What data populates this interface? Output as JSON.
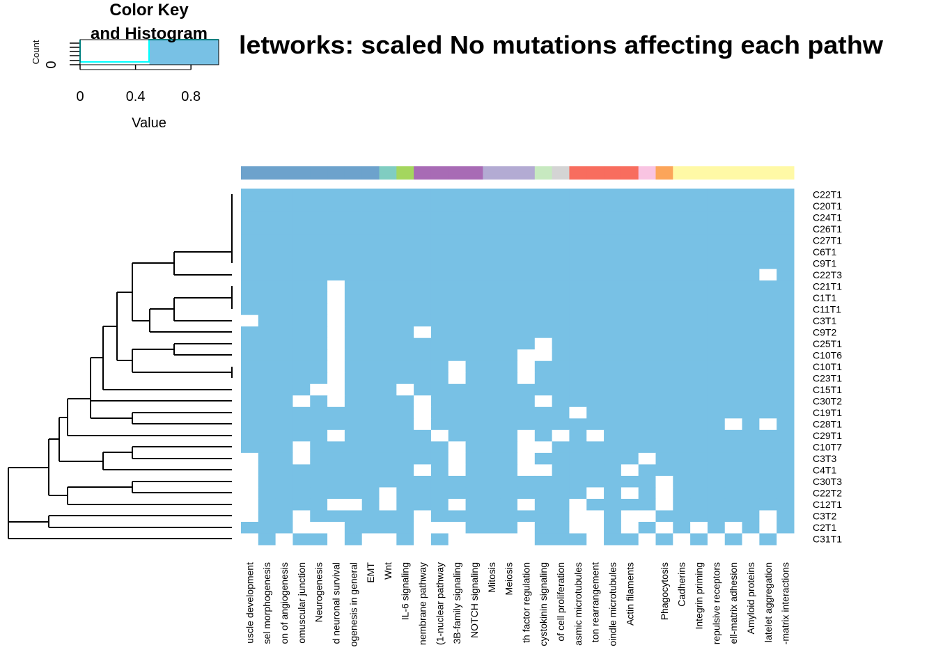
{
  "chart_data": {
    "type": "heatmap",
    "title": "letworks: scaled No mutations affecting each pathw",
    "rows": [
      "C22T1",
      "C20T1",
      "C24T1",
      "C26T1",
      "C27T1",
      "C6T1",
      "C9T1",
      "C22T3",
      "C21T1",
      "C1T1",
      "C11T1",
      "C3T1",
      "C9T2",
      "C25T1",
      "C10T6",
      "C10T1",
      "C23T1",
      "C15T1",
      "C30T2",
      "C19T1",
      "C28T1",
      "C29T1",
      "C10T7",
      "C3T3",
      "C4T1",
      "C30T3",
      "C22T2",
      "C12T1",
      "C3T2",
      "C2T1",
      "C31T1"
    ],
    "columns": [
      "uscle development",
      "sel morphogenesis",
      "on of angiogenesis",
      "omuscular junction",
      "Neurogenesis",
      "d neuronal survival",
      "ogenesis in general",
      "EMT",
      "Wnt",
      "IL-6 signaling",
      "nembrane pathway",
      "(1-nuclear pathway",
      "3B-family signaling",
      "NOTCH signaling",
      "Mitosis",
      "Meiosis",
      "th factor regulation",
      "cystokinin signaling",
      "of cell proliferation",
      "asmic microtubules",
      "ton rearrangement",
      "oindle microtubules",
      "Actin filaments",
      null,
      "Phagocytosis",
      "Cadherins",
      "Integrin priming",
      "repulsive receptors",
      "ell-matrix adhesion",
      "Amyloid proteins",
      "latelet aggregation",
      "-matrix interactions"
    ],
    "column_colors": [
      "#6da2cc",
      "#6da2cc",
      "#6da2cc",
      "#6da2cc",
      "#6da2cc",
      "#6da2cc",
      "#6da2cc",
      "#6da2cc",
      "#80cdc1",
      "#a4d65e",
      "#a86bb5",
      "#a86bb5",
      "#a86bb5",
      "#a86bb5",
      "#b3abd3",
      "#b3abd3",
      "#b3abd3",
      "#c7e9c0",
      "#d4d4d4",
      "#f86d5e",
      "#f86d5e",
      "#f86d5e",
      "#f86d5e",
      "#f9c4e2",
      "#fca55a",
      "#fff9a6",
      "#fff9a6",
      "#fff9a6",
      "#fff9a6",
      "#fff9a6",
      "#fff9a6",
      "#fff9a6"
    ],
    "low_color": "#ffffff",
    "high_color": "#78c1e5",
    "color_breaks": [
      0,
      0.5,
      1
    ],
    "values": [
      [
        1,
        1,
        1,
        1,
        1,
        1,
        1,
        1,
        1,
        1,
        1,
        1,
        1,
        1,
        1,
        1,
        1,
        1,
        1,
        1,
        1,
        1,
        1,
        1,
        1,
        1,
        1,
        1,
        1,
        1,
        1,
        1
      ],
      [
        1,
        1,
        1,
        1,
        1,
        1,
        1,
        1,
        1,
        1,
        1,
        1,
        1,
        1,
        1,
        1,
        1,
        1,
        1,
        1,
        1,
        1,
        1,
        1,
        1,
        1,
        1,
        1,
        1,
        1,
        1,
        1
      ],
      [
        1,
        1,
        1,
        1,
        1,
        1,
        1,
        1,
        1,
        1,
        1,
        1,
        1,
        1,
        1,
        1,
        1,
        1,
        1,
        1,
        1,
        1,
        1,
        1,
        1,
        1,
        1,
        1,
        1,
        1,
        1,
        1
      ],
      [
        1,
        1,
        1,
        1,
        1,
        1,
        1,
        1,
        1,
        1,
        1,
        1,
        1,
        1,
        1,
        1,
        1,
        1,
        1,
        1,
        1,
        1,
        1,
        1,
        1,
        1,
        1,
        1,
        1,
        1,
        1,
        1
      ],
      [
        1,
        1,
        1,
        1,
        1,
        1,
        1,
        1,
        1,
        1,
        1,
        1,
        1,
        1,
        1,
        1,
        1,
        1,
        1,
        1,
        1,
        1,
        1,
        1,
        1,
        1,
        1,
        1,
        1,
        1,
        1,
        1
      ],
      [
        1,
        1,
        1,
        1,
        1,
        1,
        1,
        1,
        1,
        1,
        1,
        1,
        1,
        1,
        1,
        1,
        1,
        1,
        1,
        1,
        1,
        1,
        1,
        1,
        1,
        1,
        1,
        1,
        1,
        1,
        1,
        1
      ],
      [
        1,
        1,
        1,
        1,
        1,
        1,
        1,
        1,
        1,
        1,
        1,
        1,
        1,
        1,
        1,
        1,
        1,
        1,
        1,
        1,
        1,
        1,
        1,
        1,
        1,
        1,
        1,
        1,
        1,
        1,
        1,
        1
      ],
      [
        1,
        1,
        1,
        1,
        1,
        1,
        1,
        1,
        1,
        1,
        1,
        1,
        1,
        1,
        1,
        1,
        1,
        1,
        1,
        1,
        1,
        1,
        1,
        1,
        1,
        1,
        1,
        1,
        1,
        1,
        0,
        1
      ],
      [
        1,
        1,
        1,
        1,
        1,
        0,
        1,
        1,
        1,
        1,
        1,
        1,
        1,
        1,
        1,
        1,
        1,
        1,
        1,
        1,
        1,
        1,
        1,
        1,
        1,
        1,
        1,
        1,
        1,
        1,
        1,
        1
      ],
      [
        1,
        1,
        1,
        1,
        1,
        0,
        1,
        1,
        1,
        1,
        1,
        1,
        1,
        1,
        1,
        1,
        1,
        1,
        1,
        1,
        1,
        1,
        1,
        1,
        1,
        1,
        1,
        1,
        1,
        1,
        1,
        1
      ],
      [
        1,
        1,
        1,
        1,
        1,
        0,
        1,
        1,
        1,
        1,
        1,
        1,
        1,
        1,
        1,
        1,
        1,
        1,
        1,
        1,
        1,
        1,
        1,
        1,
        1,
        1,
        1,
        1,
        1,
        1,
        1,
        1
      ],
      [
        0,
        1,
        1,
        1,
        1,
        0,
        1,
        1,
        1,
        1,
        1,
        1,
        1,
        1,
        1,
        1,
        1,
        1,
        1,
        1,
        1,
        1,
        1,
        1,
        1,
        1,
        1,
        1,
        1,
        1,
        1,
        1
      ],
      [
        1,
        1,
        1,
        1,
        1,
        0,
        1,
        1,
        1,
        1,
        0,
        1,
        1,
        1,
        1,
        1,
        1,
        1,
        1,
        1,
        1,
        1,
        1,
        1,
        1,
        1,
        1,
        1,
        1,
        1,
        1,
        1
      ],
      [
        1,
        1,
        1,
        1,
        1,
        0,
        1,
        1,
        1,
        1,
        1,
        1,
        1,
        1,
        1,
        1,
        1,
        0,
        1,
        1,
        1,
        1,
        1,
        1,
        1,
        1,
        1,
        1,
        1,
        1,
        1,
        1
      ],
      [
        1,
        1,
        1,
        1,
        1,
        0,
        1,
        1,
        1,
        1,
        1,
        1,
        1,
        1,
        1,
        1,
        0,
        0,
        1,
        1,
        1,
        1,
        1,
        1,
        1,
        1,
        1,
        1,
        1,
        1,
        1,
        1
      ],
      [
        1,
        1,
        1,
        1,
        1,
        0,
        1,
        1,
        1,
        1,
        1,
        1,
        0,
        1,
        1,
        1,
        0,
        1,
        1,
        1,
        1,
        1,
        1,
        1,
        1,
        1,
        1,
        1,
        1,
        1,
        1,
        1
      ],
      [
        1,
        1,
        1,
        1,
        1,
        0,
        1,
        1,
        1,
        1,
        1,
        1,
        0,
        1,
        1,
        1,
        0,
        1,
        1,
        1,
        1,
        1,
        1,
        1,
        1,
        1,
        1,
        1,
        1,
        1,
        1,
        1
      ],
      [
        1,
        1,
        1,
        1,
        0,
        0,
        1,
        1,
        1,
        0,
        1,
        1,
        1,
        1,
        1,
        1,
        1,
        1,
        1,
        1,
        1,
        1,
        1,
        1,
        1,
        1,
        1,
        1,
        1,
        1,
        1,
        1
      ],
      [
        1,
        1,
        1,
        0,
        1,
        0,
        1,
        1,
        1,
        1,
        0,
        1,
        1,
        1,
        1,
        1,
        1,
        0,
        1,
        1,
        1,
        1,
        1,
        1,
        1,
        1,
        1,
        1,
        1,
        1,
        1,
        1
      ],
      [
        1,
        1,
        1,
        1,
        1,
        1,
        1,
        1,
        1,
        1,
        0,
        1,
        1,
        1,
        1,
        1,
        1,
        1,
        1,
        0,
        1,
        1,
        1,
        1,
        1,
        1,
        1,
        1,
        1,
        1,
        1,
        1
      ],
      [
        1,
        1,
        1,
        1,
        1,
        1,
        1,
        1,
        1,
        1,
        0,
        1,
        1,
        1,
        1,
        1,
        1,
        1,
        1,
        1,
        1,
        1,
        1,
        1,
        1,
        1,
        1,
        1,
        0,
        1,
        0,
        1
      ],
      [
        1,
        1,
        1,
        1,
        1,
        0,
        1,
        1,
        1,
        1,
        1,
        0,
        1,
        1,
        1,
        1,
        0,
        1,
        0,
        1,
        0,
        1,
        1,
        1,
        1,
        1,
        1,
        1,
        1,
        1,
        1,
        1
      ],
      [
        1,
        1,
        1,
        0,
        1,
        1,
        1,
        1,
        1,
        1,
        1,
        1,
        0,
        1,
        1,
        1,
        0,
        0,
        1,
        1,
        1,
        1,
        1,
        1,
        1,
        1,
        1,
        1,
        1,
        1,
        1,
        1
      ],
      [
        0,
        1,
        1,
        0,
        1,
        1,
        1,
        1,
        1,
        1,
        1,
        1,
        0,
        1,
        1,
        1,
        0,
        1,
        1,
        1,
        1,
        1,
        1,
        0,
        1,
        1,
        1,
        1,
        1,
        1,
        1,
        1
      ],
      [
        0,
        1,
        1,
        1,
        1,
        1,
        1,
        1,
        1,
        1,
        0,
        1,
        0,
        1,
        1,
        1,
        0,
        0,
        1,
        1,
        1,
        1,
        0,
        1,
        1,
        1,
        1,
        1,
        1,
        1,
        1,
        1
      ],
      [
        0,
        1,
        1,
        1,
        1,
        1,
        1,
        1,
        1,
        1,
        1,
        1,
        1,
        1,
        1,
        1,
        1,
        1,
        1,
        1,
        1,
        1,
        1,
        1,
        0,
        1,
        1,
        1,
        1,
        1,
        1,
        1
      ],
      [
        0,
        1,
        1,
        1,
        1,
        1,
        1,
        1,
        0,
        1,
        1,
        1,
        1,
        1,
        1,
        1,
        1,
        1,
        1,
        1,
        0,
        1,
        0,
        1,
        0,
        1,
        1,
        1,
        1,
        1,
        1,
        1
      ],
      [
        0,
        1,
        1,
        1,
        1,
        0,
        0,
        1,
        0,
        1,
        1,
        1,
        0,
        1,
        1,
        1,
        0,
        1,
        1,
        0,
        1,
        1,
        1,
        1,
        0,
        1,
        1,
        1,
        1,
        1,
        1,
        1
      ],
      [
        0,
        1,
        1,
        0,
        1,
        1,
        1,
        1,
        1,
        1,
        0,
        1,
        1,
        1,
        1,
        1,
        1,
        1,
        1,
        0,
        0,
        1,
        0,
        0,
        1,
        1,
        1,
        1,
        1,
        1,
        0,
        1
      ],
      [
        1,
        1,
        1,
        0,
        0,
        0,
        1,
        1,
        1,
        1,
        0,
        0,
        0,
        1,
        1,
        1,
        0,
        1,
        1,
        0,
        0,
        1,
        0,
        1,
        0,
        1,
        0,
        1,
        0,
        1,
        0,
        1
      ],
      [
        0,
        1,
        0,
        1,
        1,
        0,
        1,
        0,
        0,
        1,
        0,
        1,
        0,
        0,
        0,
        0,
        0,
        1,
        1,
        1,
        0,
        1,
        1,
        0,
        1,
        0,
        1,
        0,
        1,
        0,
        1,
        0
      ]
    ],
    "color_key": {
      "title_lines": [
        "Color Key",
        "and Histogram"
      ],
      "xlabel": "Value",
      "ylabel": "Count",
      "xlim": [
        0,
        1
      ],
      "xticks": [
        0,
        0.4,
        0.8
      ],
      "yticks": [
        0
      ]
    }
  }
}
